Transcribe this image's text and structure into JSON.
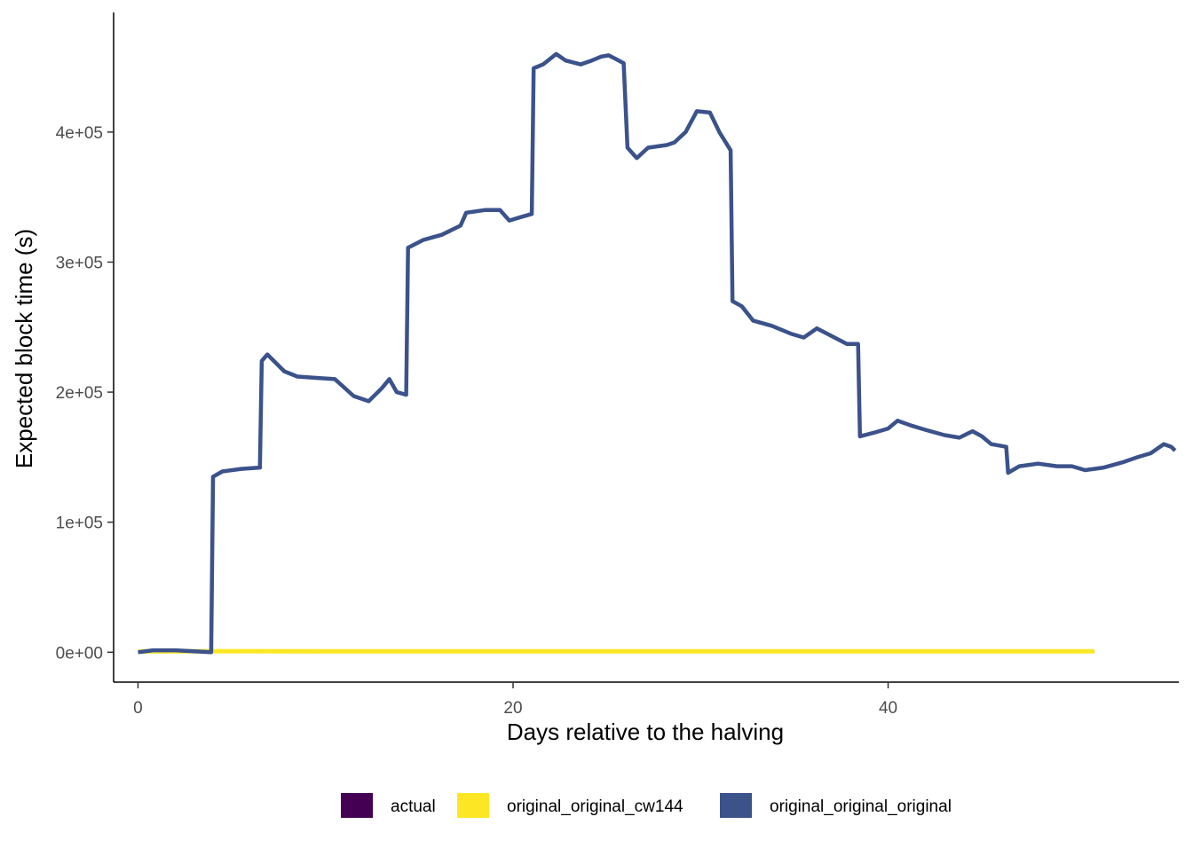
{
  "chart_data": {
    "type": "line",
    "title": "",
    "xlabel": "Days relative to the halving",
    "ylabel": "Expected block time (s)",
    "xlim": [
      -1.3,
      55.5
    ],
    "ylim": [
      -23000,
      492000
    ],
    "x_ticks": [
      {
        "value": 0,
        "label": "0"
      },
      {
        "value": 20,
        "label": "20"
      },
      {
        "value": 40,
        "label": "40"
      }
    ],
    "y_ticks": [
      {
        "value": 0,
        "label": "0e+00"
      },
      {
        "value": 100000,
        "label": "1e+05"
      },
      {
        "value": 200000,
        "label": "2e+05"
      },
      {
        "value": 300000,
        "label": "3e+05"
      },
      {
        "value": 400000,
        "label": "4e+05"
      }
    ],
    "grid": false,
    "legend_position": "bottom",
    "legend": [
      {
        "label": "actual",
        "color": "#440154"
      },
      {
        "label": "original_original_cw144",
        "color": "#FDE725"
      },
      {
        "label": "original_original_original",
        "color": "#3B528B"
      }
    ],
    "series": [
      {
        "name": "actual",
        "color": "#440154",
        "points": [
          [
            0,
            600
          ],
          [
            5,
            620
          ],
          [
            10,
            590
          ],
          [
            15,
            610
          ],
          [
            20,
            600
          ],
          [
            25,
            605
          ],
          [
            30,
            595
          ],
          [
            35,
            600
          ],
          [
            40,
            610
          ],
          [
            45,
            600
          ],
          [
            51,
            600
          ]
        ]
      },
      {
        "name": "original_original_cw144",
        "color": "#FDE725",
        "points": [
          [
            0,
            600
          ],
          [
            5,
            800
          ],
          [
            10,
            700
          ],
          [
            15,
            750
          ],
          [
            20,
            700
          ],
          [
            25,
            650
          ],
          [
            30,
            700
          ],
          [
            35,
            650
          ],
          [
            40,
            700
          ],
          [
            45,
            650
          ],
          [
            51,
            650
          ]
        ]
      },
      {
        "name": "original_original_original",
        "color": "#3B528B",
        "points": [
          [
            0,
            0
          ],
          [
            0.8,
            1500
          ],
          [
            2,
            1500
          ],
          [
            3.9,
            0
          ],
          [
            4.0,
            135000
          ],
          [
            4.5,
            139000
          ],
          [
            5.5,
            141000
          ],
          [
            6.5,
            142000
          ],
          [
            6.6,
            224000
          ],
          [
            6.9,
            229000
          ],
          [
            7.8,
            216000
          ],
          [
            8.5,
            212000
          ],
          [
            9.5,
            211000
          ],
          [
            10.5,
            210000
          ],
          [
            11.5,
            197000
          ],
          [
            12.3,
            193000
          ],
          [
            13.0,
            203000
          ],
          [
            13.4,
            210000
          ],
          [
            13.8,
            200000
          ],
          [
            14.3,
            198000
          ],
          [
            14.4,
            311000
          ],
          [
            15.2,
            317000
          ],
          [
            16.2,
            321000
          ],
          [
            17.2,
            328000
          ],
          [
            17.5,
            338000
          ],
          [
            18.5,
            340000
          ],
          [
            19.3,
            340000
          ],
          [
            19.8,
            332000
          ],
          [
            20.5,
            335000
          ],
          [
            21.0,
            337000
          ],
          [
            21.1,
            449000
          ],
          [
            21.6,
            452000
          ],
          [
            22.3,
            460000
          ],
          [
            22.8,
            455000
          ],
          [
            23.6,
            452000
          ],
          [
            24.2,
            455000
          ],
          [
            24.7,
            458000
          ],
          [
            25.1,
            459000
          ],
          [
            25.5,
            456000
          ],
          [
            25.9,
            453000
          ],
          [
            26.1,
            388000
          ],
          [
            26.6,
            380000
          ],
          [
            27.2,
            388000
          ],
          [
            28.2,
            390000
          ],
          [
            28.6,
            392000
          ],
          [
            29.2,
            400000
          ],
          [
            29.8,
            416000
          ],
          [
            30.5,
            415000
          ],
          [
            31.0,
            400000
          ],
          [
            31.6,
            386000
          ],
          [
            31.7,
            270000
          ],
          [
            32.2,
            266000
          ],
          [
            32.8,
            255000
          ],
          [
            33.8,
            251000
          ],
          [
            34.8,
            245000
          ],
          [
            35.5,
            242000
          ],
          [
            36.2,
            249000
          ],
          [
            37.0,
            243000
          ],
          [
            37.8,
            237000
          ],
          [
            38.4,
            237000
          ],
          [
            38.5,
            166000
          ],
          [
            39.3,
            169000
          ],
          [
            40.0,
            172000
          ],
          [
            40.5,
            178000
          ],
          [
            41.3,
            174000
          ],
          [
            42.0,
            171000
          ],
          [
            43.0,
            167000
          ],
          [
            43.8,
            165000
          ],
          [
            44.5,
            170000
          ],
          [
            45.0,
            166000
          ],
          [
            45.5,
            160000
          ],
          [
            46.3,
            158000
          ],
          [
            46.4,
            138000
          ],
          [
            47.0,
            143000
          ],
          [
            48.0,
            145000
          ],
          [
            49.0,
            143000
          ],
          [
            49.8,
            143000
          ],
          [
            50.5,
            140000
          ],
          [
            51.5,
            142000
          ],
          [
            52.5,
            146000
          ],
          [
            53.3,
            150000
          ],
          [
            54.0,
            153000
          ],
          [
            54.7,
            160000
          ],
          [
            55.1,
            158000
          ],
          [
            55.3,
            155000
          ]
        ]
      }
    ]
  }
}
